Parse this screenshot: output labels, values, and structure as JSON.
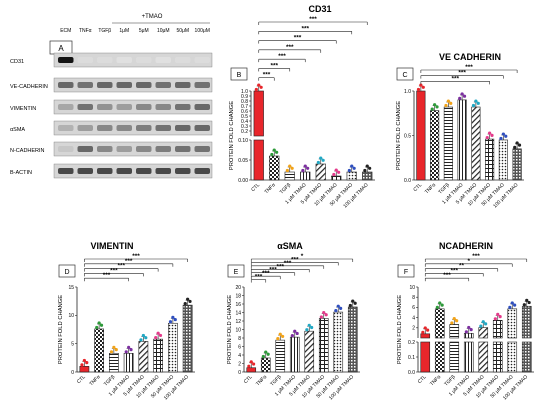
{
  "blot": {
    "panel_label": "A",
    "treatment_header": "+TMAO",
    "lanes": [
      "ECM",
      "TNFα",
      "TGFβ",
      "1μM",
      "5μM",
      "10μM",
      "50μM",
      "100μM"
    ],
    "rows": [
      "CD31",
      "VE-CADHERIN",
      "VIMENTIN",
      "αSMA",
      "N-CADHERIN",
      "Β-ACTIN"
    ]
  },
  "panels": [
    {
      "id": "B",
      "title": "CD31",
      "ylabel": "PROTEIN FOLD CHANGE",
      "bars": [
        1.0,
        0.06,
        0.02,
        0.02,
        0.04,
        0.01,
        0.02,
        0.02
      ],
      "sig": [
        "***",
        "***",
        "***",
        "***",
        "***",
        "***",
        "***"
      ],
      "break": {
        "lower": [
          0,
          0.1
        ],
        "upper": [
          0.1,
          1.0
        ],
        "lower_ticks": [
          "0.00",
          "0.05",
          "0.10"
        ],
        "upper_ticks": [
          "0.1",
          "0.2",
          "0.3",
          "0.4",
          "0.5",
          "0.6",
          "0.7",
          "0.8",
          "0.9",
          "1.0"
        ]
      }
    },
    {
      "id": "C",
      "title": "VE CADHERIN",
      "ylabel": "PROTEIN FOLD CHANGE",
      "bars": [
        1.0,
        0.78,
        0.82,
        0.9,
        0.82,
        0.46,
        0.45,
        0.35
      ],
      "sig": [
        "***",
        "***",
        "***"
      ],
      "ylim": [
        0,
        1.0
      ],
      "ticks": [
        "0.0",
        "0.5",
        "1.0"
      ]
    },
    {
      "id": "D",
      "title": "VIMENTIN",
      "ylabel": "PROTEIN FOLD CHANGE",
      "bars": [
        1.0,
        7.6,
        3.3,
        3.3,
        5.4,
        5.8,
        8.6,
        11.8
      ],
      "sig": [
        "***",
        "***",
        "***",
        "***",
        "***"
      ],
      "ylim": [
        0,
        15
      ],
      "ticks": [
        "0",
        "5",
        "10",
        "15"
      ]
    },
    {
      "id": "E",
      "title": "αSMA",
      "ylabel": "PROTEIN FOLD CHANGE",
      "bars": [
        1.0,
        3.3,
        7.5,
        8.2,
        9.6,
        12.6,
        14.1,
        15.3
      ],
      "sig": [
        "*",
        "***",
        "***",
        "***",
        "***",
        "***",
        "***"
      ],
      "ylim": [
        0,
        20
      ],
      "ticks": [
        "0",
        "2",
        "4",
        "6",
        "8",
        "10",
        "12",
        "14",
        "16",
        "18",
        "20"
      ]
    },
    {
      "id": "F",
      "title": "NCADHERIN",
      "ylabel": "PROTEIN FOLD CHANGE",
      "bars": [
        1.0,
        5.8,
        2.8,
        1.1,
        2.2,
        3.6,
        5.8,
        6.3
      ],
      "sig": [
        "***",
        "*",
        "**",
        "***",
        "***"
      ],
      "break": {
        "lower": [
          0,
          0.2
        ],
        "upper": [
          0.2,
          10
        ],
        "lower_ticks": [
          "0.0",
          "0.1",
          "0.2"
        ],
        "upper_ticks": [
          "0.2",
          "2",
          "4",
          "6",
          "8",
          "10"
        ]
      }
    }
  ],
  "categories": [
    "CTL",
    "TNFα",
    "TGFβ",
    "1 μM TMAO",
    "5 μM TMAO",
    "10 μM TMAO",
    "50 μM TMAO",
    "100 μM TMAO"
  ],
  "colors": {
    "ctl": "#e8262b",
    "tnf": "#2e9a3a",
    "tgf": "#f2a318",
    "d1": "#7c2fa0",
    "d2": "#21a8c4",
    "d3": "#e43a8b",
    "d4": "#2f4fbf"
  },
  "chart_data": [
    {
      "type": "bar",
      "title": "CD31",
      "ylabel": "PROTEIN FOLD CHANGE",
      "categories": [
        "CTL",
        "TNFα",
        "TGFβ",
        "1 μM TMAO",
        "5 μM TMAO",
        "10 μM TMAO",
        "50 μM TMAO",
        "100 μM TMAO"
      ],
      "values": [
        1.0,
        0.06,
        0.02,
        0.02,
        0.04,
        0.01,
        0.02,
        0.02
      ]
    },
    {
      "type": "bar",
      "title": "VE CADHERIN",
      "ylabel": "PROTEIN FOLD CHANGE",
      "categories": [
        "CTL",
        "TNFα",
        "TGFβ",
        "1 μM TMAO",
        "5 μM TMAO",
        "10 μM TMAO",
        "50 μM TMAO",
        "100 μM TMAO"
      ],
      "values": [
        1.0,
        0.78,
        0.82,
        0.9,
        0.82,
        0.46,
        0.45,
        0.35
      ],
      "ylim": [
        0,
        1.0
      ]
    },
    {
      "type": "bar",
      "title": "VIMENTIN",
      "ylabel": "PROTEIN FOLD CHANGE",
      "categories": [
        "CTL",
        "TNFα",
        "TGFβ",
        "1 μM TMAO",
        "5 μM TMAO",
        "10 μM TMAO",
        "50 μM TMAO",
        "100 μM TMAO"
      ],
      "values": [
        1.0,
        7.6,
        3.3,
        3.3,
        5.4,
        5.8,
        8.6,
        11.8
      ],
      "ylim": [
        0,
        15
      ]
    },
    {
      "type": "bar",
      "title": "αSMA",
      "ylabel": "PROTEIN FOLD CHANGE",
      "categories": [
        "CTL",
        "TNFα",
        "TGFβ",
        "1 μM TMAO",
        "5 μM TMAO",
        "10 μM TMAO",
        "50 μM TMAO",
        "100 μM TMAO"
      ],
      "values": [
        1.0,
        3.3,
        7.5,
        8.2,
        9.6,
        12.6,
        14.1,
        15.3
      ],
      "ylim": [
        0,
        20
      ]
    },
    {
      "type": "bar",
      "title": "NCADHERIN",
      "ylabel": "PROTEIN FOLD CHANGE",
      "categories": [
        "CTL",
        "TNFα",
        "TGFβ",
        "1 μM TMAO",
        "5 μM TMAO",
        "10 μM TMAO",
        "50 μM TMAO",
        "100 μM TMAO"
      ],
      "values": [
        1.0,
        5.8,
        2.8,
        1.1,
        2.2,
        3.6,
        5.8,
        6.3
      ],
      "ylim": [
        0,
        10
      ]
    }
  ]
}
